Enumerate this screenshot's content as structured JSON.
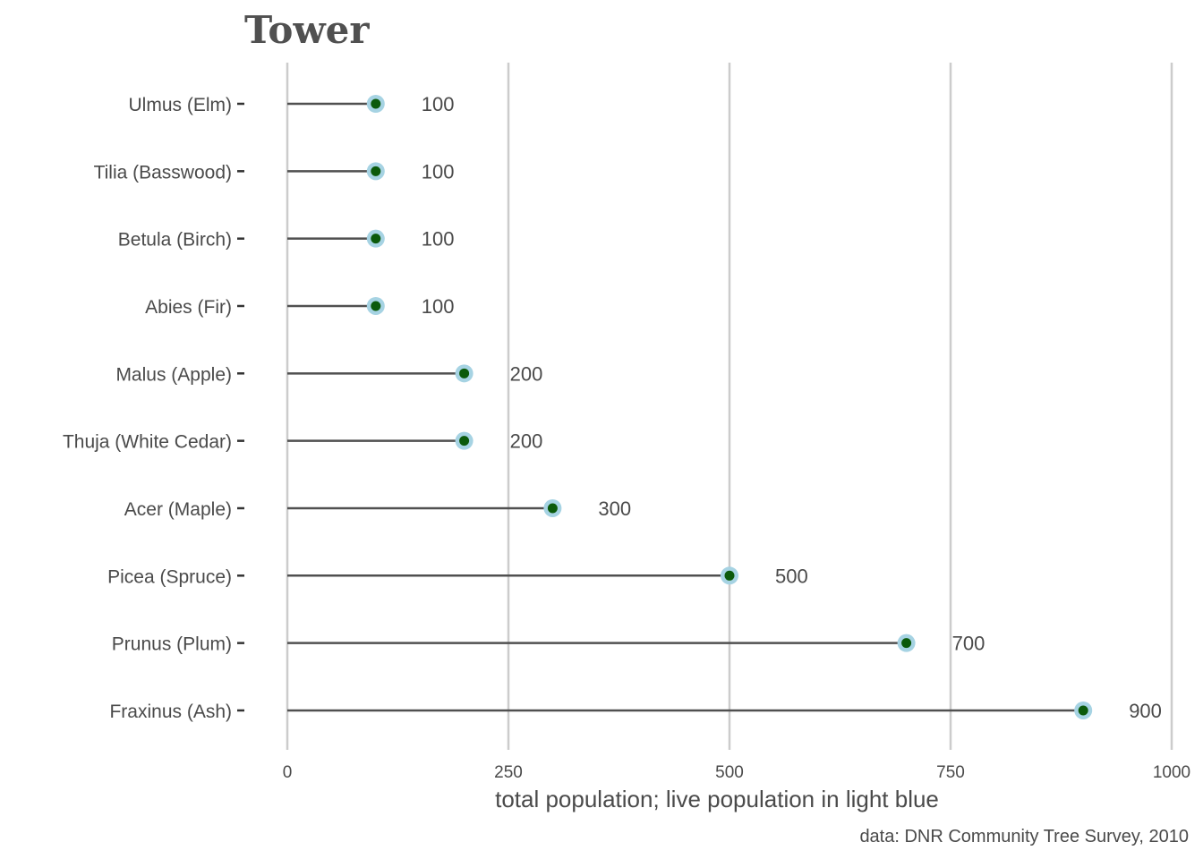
{
  "chart_data": {
    "type": "lollipop",
    "title": "Tower",
    "xlabel": "total population; live population in light blue",
    "caption": "data: DNR Community Tree Survey, 2010",
    "xlim": [
      0,
      1000
    ],
    "xticks": [
      0,
      250,
      500,
      750,
      1000
    ],
    "grid": "vertical",
    "categories": [
      "Ulmus (Elm)",
      "Tilia (Basswood)",
      "Betula (Birch)",
      "Abies (Fir)",
      "Malus (Apple)",
      "Thuja (White Cedar)",
      "Acer (Maple)",
      "Picea (Spruce)",
      "Prunus (Plum)",
      "Fraxinus (Ash)"
    ],
    "series": [
      {
        "values": [
          100,
          100,
          100,
          100,
          200,
          200,
          300,
          500,
          700,
          900
        ],
        "color": "#0b5a0b"
      },
      {
        "values": [
          100,
          100,
          100,
          100,
          200,
          200,
          300,
          500,
          700,
          900
        ],
        "color": "#a6d3e3"
      }
    ],
    "data_labels": [
      "100",
      "100",
      "100",
      "100",
      "200",
      "200",
      "300",
      "500",
      "700",
      "900"
    ]
  }
}
